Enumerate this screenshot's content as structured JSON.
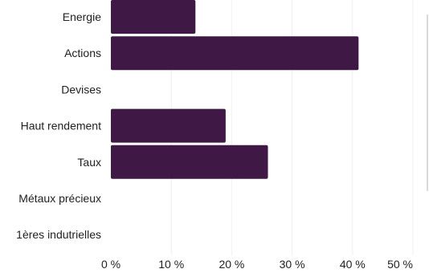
{
  "chart_data": {
    "type": "bar",
    "orientation": "horizontal",
    "categories": [
      "Energie",
      "Actions",
      "Devises",
      "Haut rendement",
      "Taux",
      "Métaux précieux",
      "1ères indutrielles"
    ],
    "values": [
      14,
      41,
      0,
      19,
      26,
      0,
      0
    ],
    "xlim": [
      0,
      50
    ],
    "x_ticks": [
      0,
      10,
      20,
      30,
      40,
      50
    ],
    "x_tick_labels": [
      "0 %",
      "10 %",
      "20 %",
      "30 %",
      "40 %",
      "50 %"
    ],
    "title": "",
    "xlabel": "",
    "ylabel": "",
    "grid": true,
    "legend": "none",
    "bar_color": "#3f1845"
  }
}
